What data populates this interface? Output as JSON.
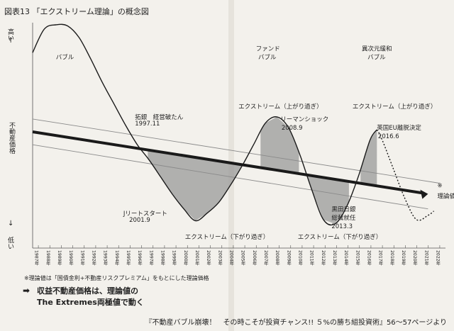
{
  "chart_data": {
    "type": "line",
    "title": "図表13 「エクストリーム理論」の概念図",
    "ylabel": "不動産価格",
    "y_top_label": "高い",
    "y_bottom_label": "低い",
    "x": [
      1987,
      1988,
      1989,
      1990,
      1991,
      1992,
      1993,
      1994,
      1995,
      1996,
      1997,
      1998,
      1999,
      2000,
      2001,
      2002,
      2003,
      2004,
      2005,
      2006,
      2007,
      2008,
      2009,
      2010,
      2011,
      2012,
      2013,
      2014,
      2015,
      2016,
      2017,
      2018,
      2019,
      2020,
      2021,
      2022
    ],
    "tick_labels": [
      "1987年",
      "1988年",
      "1989年",
      "1990年",
      "1991年",
      "1992年",
      "1993年",
      "1994年",
      "1995年",
      "1996年",
      "1997年",
      "1998年",
      "1999年",
      "2000年",
      "2001年",
      "2002年",
      "2003年",
      "2004年",
      "2005年",
      "2006年",
      "2007年",
      "2008年",
      "2009年",
      "2010年",
      "2011年",
      "2012年",
      "2013年",
      "2014年",
      "2015年",
      "2016年",
      "2017年",
      "2018年",
      "2019年",
      "2020年",
      "2021年",
      "2022年"
    ],
    "series": [
      {
        "name": "不動産価格",
        "style": "solid",
        "points": [
          [
            1987,
            0.86
          ],
          [
            1988,
            0.97
          ],
          [
            1989,
            0.99
          ],
          [
            1990,
            0.985
          ],
          [
            1991,
            0.93
          ],
          [
            1992,
            0.83
          ],
          [
            1993,
            0.72
          ],
          [
            1994,
            0.62
          ],
          [
            1995,
            0.52
          ],
          [
            1996,
            0.43
          ],
          [
            1997,
            0.36
          ],
          [
            1998,
            0.28
          ],
          [
            1999,
            0.2
          ],
          [
            2000,
            0.13
          ],
          [
            2001,
            0.075
          ],
          [
            2002,
            0.11
          ],
          [
            2003,
            0.16
          ],
          [
            2004,
            0.24
          ],
          [
            2005,
            0.33
          ],
          [
            2006,
            0.43
          ],
          [
            2007,
            0.53
          ],
          [
            2008,
            0.56
          ],
          [
            2009,
            0.51
          ],
          [
            2010,
            0.38
          ],
          [
            2011,
            0.22
          ],
          [
            2012,
            0.08
          ],
          [
            2013,
            0.06
          ],
          [
            2014,
            0.14
          ],
          [
            2015,
            0.28
          ],
          [
            2016,
            0.45
          ],
          [
            2016.6,
            0.5
          ]
        ]
      },
      {
        "name": "",
        "style": "dotted",
        "points": [
          [
            2016.6,
            0.5
          ],
          [
            2017,
            0.46
          ],
          [
            2018,
            0.32
          ],
          [
            2019,
            0.18
          ],
          [
            2020,
            0.08
          ],
          [
            2021,
            0.1
          ],
          [
            2021.5,
            0.12
          ]
        ]
      },
      {
        "name": "理論値",
        "style": "thick",
        "points": [
          [
            1987,
            0.49
          ],
          [
            2021,
            0.2
          ]
        ]
      },
      {
        "name": "",
        "style": "band",
        "points": [
          [
            1987,
            0.55
          ],
          [
            2022,
            0.25
          ]
        ]
      },
      {
        "name": "",
        "style": "band",
        "points": [
          [
            1987,
            0.43
          ],
          [
            2021,
            0.13
          ]
        ]
      }
    ],
    "ylim": [
      0,
      1
    ],
    "xlim": [
      1987,
      2022.5
    ],
    "grid": false,
    "annotations": [
      {
        "text": "バブル",
        "x": 1989,
        "y": 0.83
      },
      {
        "text": "拓銀　経営破たん",
        "x": 1995.8,
        "y": 0.55
      },
      {
        "text": "1997.11",
        "x": 1995.8,
        "y": 0.52
      },
      {
        "text": "Jリートスタート",
        "x": 1994.8,
        "y": 0.1
      },
      {
        "text": "2001.9",
        "x": 1995.3,
        "y": 0.07
      },
      {
        "text": "ファンド",
        "x": 2006.2,
        "y": 0.87
      },
      {
        "text": "バブル",
        "x": 2006.4,
        "y": 0.83
      },
      {
        "text": "エクストリーム（上がり過ぎ）",
        "x": 2004.7,
        "y": 0.6
      },
      {
        "text": "リーマンショック",
        "x": 2008.3,
        "y": 0.54
      },
      {
        "text": "2008.9",
        "x": 2008.4,
        "y": 0.5
      },
      {
        "text": "エクストリーム（下がり過ぎ）",
        "x": 2000.1,
        "y": -0.01
      },
      {
        "text": "エクストリーム（下がり過ぎ）",
        "x": 2009.8,
        "y": -0.01
      },
      {
        "text": "黒田日銀",
        "x": 2012.7,
        "y": 0.12
      },
      {
        "text": "総裁就任",
        "x": 2012.7,
        "y": 0.08
      },
      {
        "text": "2013.3",
        "x": 2012.7,
        "y": 0.04
      },
      {
        "text": "異次元緩和",
        "x": 2015.3,
        "y": 0.87
      },
      {
        "text": "バブル",
        "x": 2015.8,
        "y": 0.83
      },
      {
        "text": "エクストリーム（上がり過ぎ）",
        "x": 2014.5,
        "y": 0.6
      },
      {
        "text": "英国EU離脱決定",
        "x": 2016.6,
        "y": 0.5
      },
      {
        "text": "2016.6",
        "x": 2016.7,
        "y": 0.46
      },
      {
        "text": "※",
        "x": 2021.8,
        "y": 0.23
      },
      {
        "text": "理論値",
        "x": 2021.8,
        "y": 0.18
      }
    ]
  },
  "footnote": "※理論値は「国債金利+不動産リスクプレミアム」をもとにした理論価格",
  "takeaway_arrow": "➡",
  "takeaway_line1": "収益不動産価格は、理論値の",
  "takeaway_line2": "The Extremes両極値で動く",
  "source": "『不動産バブル崩壊！　その時こそが投資チャンス!! ５%の勝ち組投資術』56〜57ページより",
  "colors": {
    "background": "#f3f1ec",
    "line": "#1a1a1a",
    "shade": "#9a9a9a",
    "band": "#8a8a8a"
  }
}
